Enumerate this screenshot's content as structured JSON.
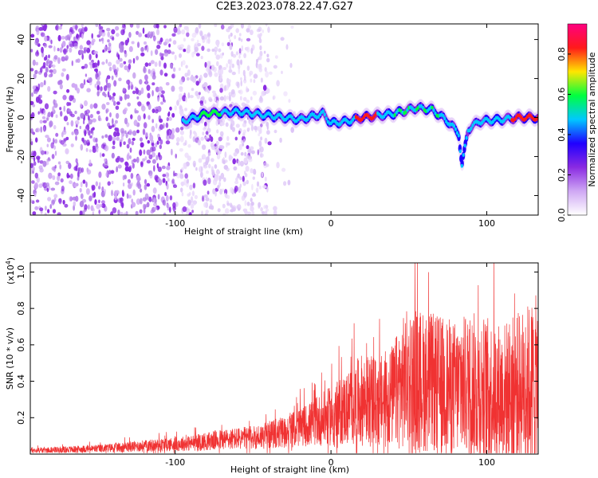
{
  "title": "C2E3.2023.078.22.47.G27",
  "chart_data": [
    {
      "type": "heatmap",
      "title": "C2E3.2023.078.22.47.G27",
      "xlabel": "Height of straight line (km)",
      "ylabel": "Frequency (Hz)",
      "xlim": [
        -193,
        133
      ],
      "ylim": [
        -50,
        48
      ],
      "x_ticks": [
        -100,
        0,
        100
      ],
      "y_ticks": [
        -40,
        -20,
        0,
        20,
        40
      ],
      "grid": false,
      "colorbar": {
        "label": "Normalized spectral amplitude",
        "range": [
          0.0,
          0.95
        ],
        "ticks": [
          0.0,
          0.2,
          0.4,
          0.6,
          0.8
        ],
        "colors": [
          "#ffffff",
          "#cfa8f4",
          "#8a2be2",
          "#2000ff",
          "#00c8ff",
          "#00ff40",
          "#ffe600",
          "#ff1a1a",
          "#ff0080"
        ]
      },
      "ridge": {
        "x": [
          -95,
          -80,
          -60,
          -40,
          -20,
          -5,
          0,
          10,
          20,
          30,
          40,
          55,
          65,
          75,
          82,
          84,
          88,
          95,
          110,
          120,
          133
        ],
        "y": [
          -2,
          2,
          3,
          1,
          -1,
          2,
          -3,
          -2,
          0,
          1,
          2,
          5,
          4,
          -2,
          -8,
          -25,
          -6,
          -2,
          -1,
          0,
          0
        ]
      }
    },
    {
      "type": "line",
      "xlabel": "Height of straight line (km)",
      "ylabel": "SNR (10 * v/v)",
      "yscale_label": "(x10",
      "yscale_exp": "4",
      "xlim": [
        -193,
        133
      ],
      "ylim": [
        0,
        1.05
      ],
      "x_ticks": [
        -100,
        0,
        100
      ],
      "y_ticks": [
        0.2,
        0.4,
        0.6,
        0.8,
        1.0
      ],
      "color": "#f03232",
      "series": [
        {
          "x": [
            -193,
            -170,
            -150,
            -130,
            -110,
            -90,
            -70,
            -50,
            -30,
            -15,
            0,
            10,
            20,
            30,
            40,
            45,
            50,
            60,
            70,
            80,
            90,
            100,
            110,
            120,
            133
          ],
          "y": [
            0.02,
            0.025,
            0.03,
            0.04,
            0.05,
            0.06,
            0.08,
            0.09,
            0.12,
            0.16,
            0.21,
            0.25,
            0.3,
            0.28,
            0.32,
            0.38,
            0.42,
            0.4,
            0.38,
            0.36,
            0.38,
            0.36,
            0.34,
            0.36,
            0.4
          ]
        }
      ]
    }
  ]
}
